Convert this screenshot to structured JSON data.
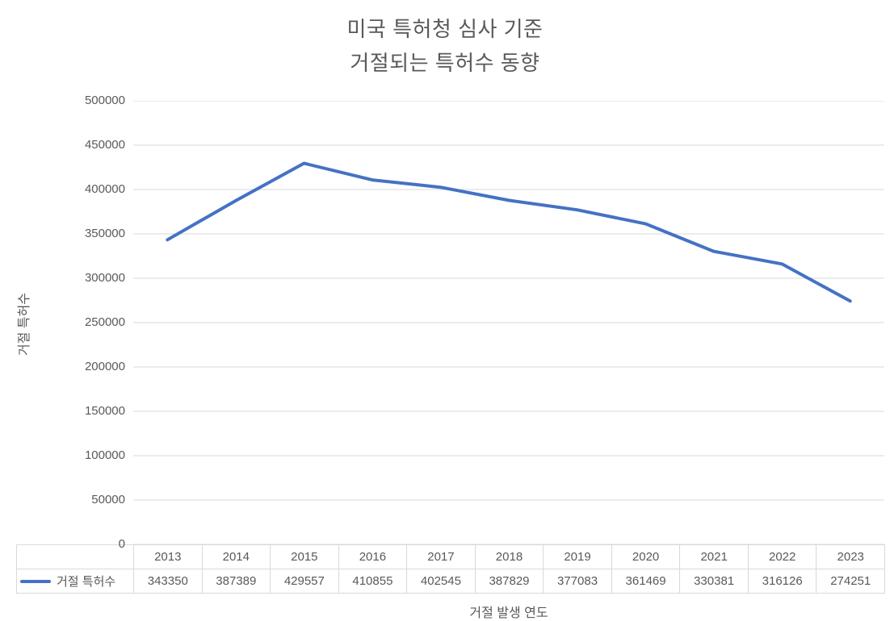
{
  "title_line1": "미국 특허청 심사 기준",
  "title_line2": "거절되는 특허수 동향",
  "chart_data": {
    "type": "line",
    "title": "미국 특허청 심사 기준 거절되는 특허수 동향",
    "xlabel": "거절 발생 연도",
    "ylabel": "거절 특허수",
    "categories": [
      "2013",
      "2014",
      "2015",
      "2016",
      "2017",
      "2018",
      "2019",
      "2020",
      "2021",
      "2022",
      "2023"
    ],
    "series": [
      {
        "name": "거절 특허수",
        "values": [
          343350,
          387389,
          429557,
          410855,
          402545,
          387829,
          377083,
          361469,
          330381,
          316126,
          274251
        ],
        "color": "#4472C4"
      }
    ],
    "ylim": [
      0,
      500000
    ],
    "ytick_step": 50000,
    "grid": true,
    "legend_position": "data-table-left",
    "data_table": true
  },
  "colors": {
    "line": "#4472C4",
    "grid": "#D9D9D9",
    "text": "#595959",
    "table_border": "#D9D9D9"
  }
}
